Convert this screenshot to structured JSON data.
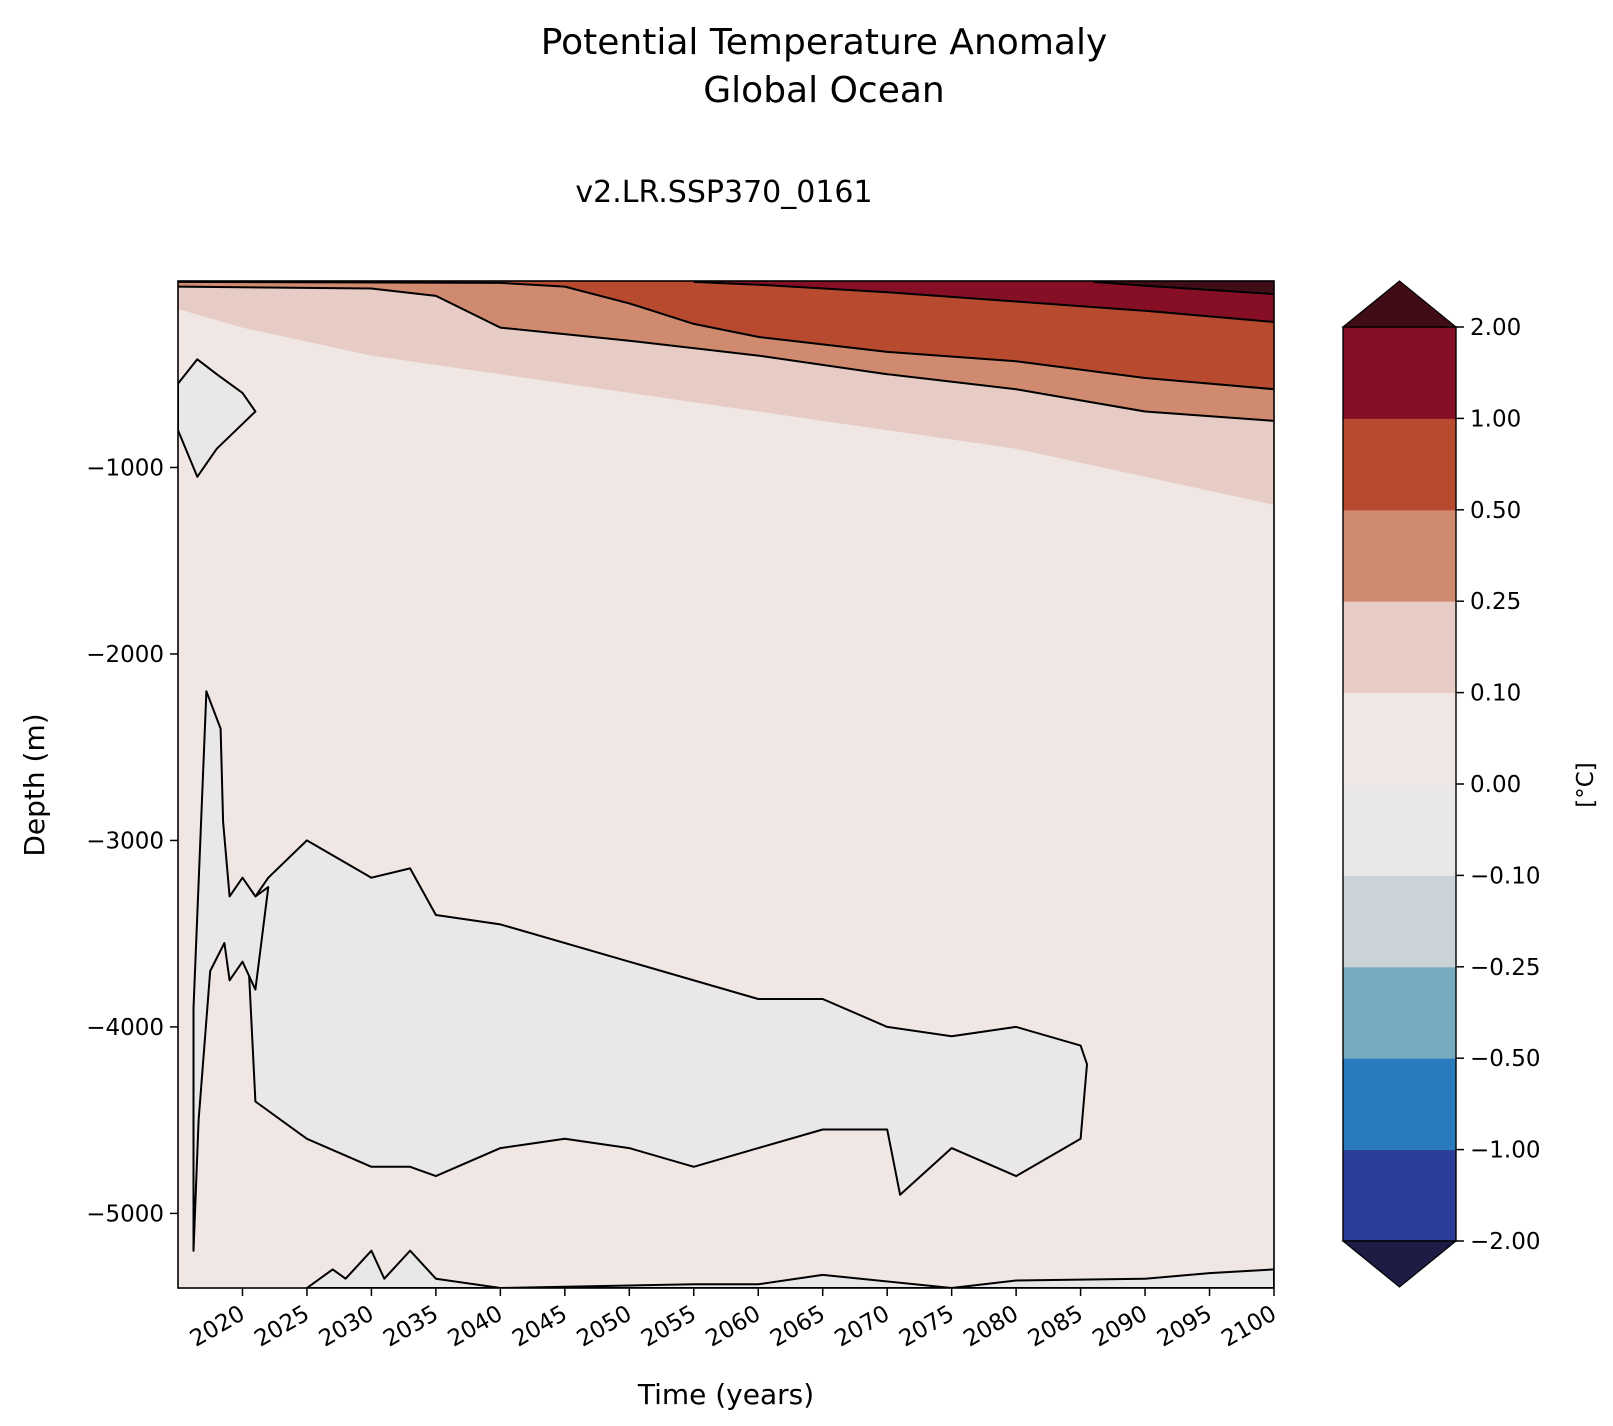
{
  "chart_data": {
    "type": "heatmap",
    "title": "Potential Temperature Anomaly",
    "subtitle": "Global Ocean",
    "run_label": "v2.LR.SSP370_0161",
    "xlabel": "Time (years)",
    "ylabel": "Depth (m)",
    "colorbar_label": "[°C]",
    "xlim": [
      2015,
      2100
    ],
    "ylim": [
      -5400,
      0
    ],
    "xticks": [
      2020,
      2025,
      2030,
      2035,
      2040,
      2045,
      2050,
      2055,
      2060,
      2065,
      2070,
      2075,
      2080,
      2085,
      2090,
      2095,
      2100
    ],
    "xtick_labels": [
      "2020",
      "2025",
      "2030",
      "2035",
      "2040",
      "2045",
      "2050",
      "2055",
      "2060",
      "2065",
      "2070",
      "2075",
      "2080",
      "2085",
      "2090",
      "2095",
      "2100"
    ],
    "yticks": [
      -1000,
      -2000,
      -3000,
      -4000,
      -5000
    ],
    "ytick_labels": [
      "−1000",
      "−2000",
      "−3000",
      "−4000",
      "−5000"
    ],
    "levels": [
      -2.0,
      -1.0,
      -0.5,
      -0.25,
      -0.1,
      0.0,
      0.1,
      0.25,
      0.5,
      1.0,
      2.0
    ],
    "level_labels": [
      "−2.00",
      "−1.00",
      "−0.50",
      "−0.25",
      "−0.10",
      "0.00",
      "0.10",
      "0.25",
      "0.50",
      "1.00",
      "2.00"
    ],
    "colors": {
      "below": "#1c1c45",
      "bins": [
        "#2b3f9a",
        "#2a7bbd",
        "#78aabf",
        "#c9d3d8",
        "#e9e7e8",
        "#f0e6e4",
        "#e6ccc4",
        "#cf8a70",
        "#b84a30",
        "#860f25"
      ],
      "above": "#400d16"
    },
    "warming_bands": [
      {
        "level": 0.1,
        "x": [
          2015,
          2020,
          2030,
          2040,
          2050,
          2060,
          2070,
          2080,
          2090,
          2100
        ],
        "y": [
          -150,
          -250,
          -400,
          -500,
          -600,
          -700,
          -800,
          -900,
          -1050,
          -1200
        ]
      },
      {
        "level": 0.25,
        "x": [
          2015,
          2030,
          2035,
          2040,
          2050,
          2060,
          2070,
          2080,
          2090,
          2100
        ],
        "y": [
          -30,
          -40,
          -80,
          -250,
          -320,
          -400,
          -500,
          -580,
          -700,
          -750
        ]
      },
      {
        "level": 0.5,
        "x": [
          2015,
          2040,
          2045,
          2050,
          2055,
          2060,
          2070,
          2080,
          2090,
          2100
        ],
        "y": [
          -5,
          -10,
          -30,
          -120,
          -230,
          -300,
          -380,
          -430,
          -520,
          -580
        ]
      },
      {
        "level": 1.0,
        "x": [
          2055,
          2060,
          2070,
          2080,
          2090,
          2100
        ],
        "y": [
          -5,
          -20,
          -60,
          -110,
          -160,
          -220
        ]
      },
      {
        "level": 2.0,
        "x": [
          2086,
          2090,
          2100
        ],
        "y": [
          -5,
          -25,
          -70
        ]
      }
    ],
    "cool_regions": [
      {
        "label": "lower-cell",
        "level": -0.1,
        "x": [
          2022,
          2025,
          2030,
          2033,
          2035,
          2040,
          2050,
          2060,
          2065,
          2070,
          2075,
          2080,
          2085,
          2085.5,
          2085,
          2080,
          2075,
          2071,
          2070,
          2065,
          2060,
          2055,
          2050,
          2045,
          2040,
          2035,
          2033,
          2030,
          2025,
          2021,
          2020.5,
          2021
        ],
        "y": [
          -3200,
          -3000,
          -3200,
          -3150,
          -3400,
          -3450,
          -3650,
          -3850,
          -3850,
          -4000,
          -4050,
          -4000,
          -4100,
          -4200,
          -4600,
          -4800,
          -4650,
          -4900,
          -4550,
          -4550,
          -4650,
          -4750,
          -4650,
          -4600,
          -4650,
          -4800,
          -4750,
          -4750,
          -4600,
          -4400,
          -3700,
          -3300
        ]
      },
      {
        "label": "upper-blob",
        "level": -0.1,
        "x": [
          2015,
          2016.5,
          2018,
          2020,
          2021,
          2018,
          2016.5,
          2015
        ],
        "y": [
          -550,
          -420,
          -500,
          -600,
          -700,
          -900,
          -1050,
          -800
        ]
      },
      {
        "label": "western-column",
        "level": -0.1,
        "x": [
          2016.2,
          2017.2,
          2018.3,
          2018.5,
          2019,
          2020,
          2021,
          2022,
          2021,
          2020,
          2019,
          2018.6,
          2017.5,
          2016.6,
          2016.2
        ],
        "y": [
          -3900,
          -2200,
          -2400,
          -2900,
          -3300,
          -3200,
          -3300,
          -3250,
          -3800,
          -3650,
          -3750,
          -3550,
          -3700,
          -4500,
          -5200
        ]
      },
      {
        "label": "bottom-edge",
        "level": -0.1,
        "x": [
          2025,
          2027,
          2028,
          2030,
          2031,
          2033,
          2035,
          2040,
          2055,
          2060,
          2065,
          2075,
          2080,
          2090,
          2095,
          2100,
          2100
        ],
        "y": [
          -5400,
          -5300,
          -5350,
          -5200,
          -5350,
          -5200,
          -5350,
          -5400,
          -5380,
          -5380,
          -5330,
          -5400,
          -5360,
          -5350,
          -5320,
          -5300,
          -5400
        ]
      }
    ]
  }
}
